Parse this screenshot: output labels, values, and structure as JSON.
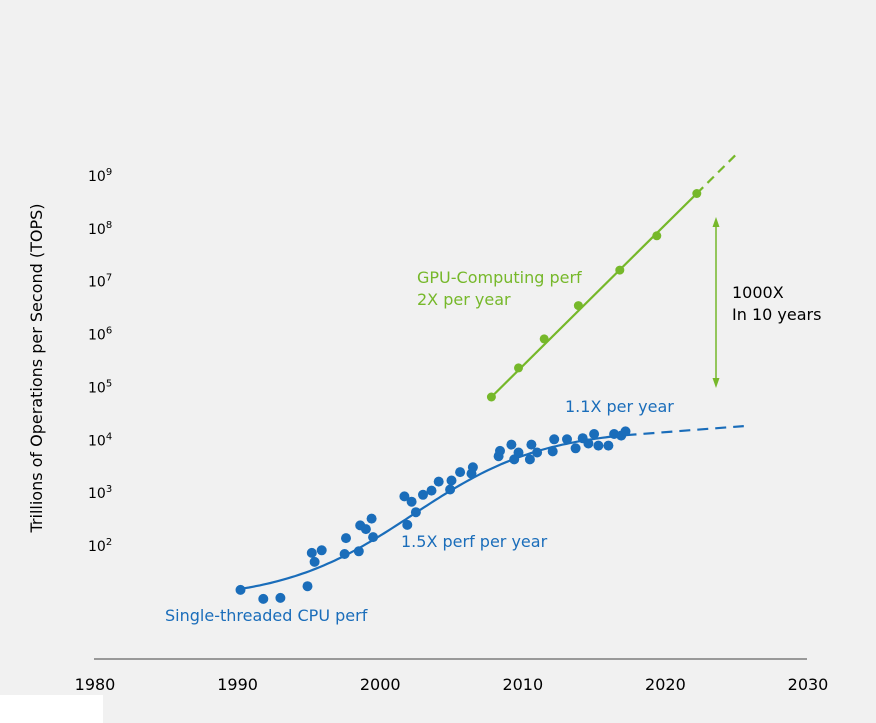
{
  "chart_data": {
    "type": "scatter",
    "title": "",
    "ylabel": "Trillions of Operations per Second (TOPS)",
    "xlabel": "",
    "yscale": "log",
    "xlim": [
      1980,
      2030
    ],
    "ylim_exponent": [
      1,
      9.35
    ],
    "x_ticks": [
      "1980",
      "1990",
      "2000",
      "2010",
      "2020",
      "2030"
    ],
    "y_ticks": [
      {
        "base": "10",
        "exp": "2",
        "value_exp": 2
      },
      {
        "base": "10",
        "exp": "3",
        "value_exp": 3
      },
      {
        "base": "10",
        "exp": "4",
        "value_exp": 4
      },
      {
        "base": "10",
        "exp": "5",
        "value_exp": 5
      },
      {
        "base": "10",
        "exp": "6",
        "value_exp": 6
      },
      {
        "base": "10",
        "exp": "7",
        "value_exp": 7
      },
      {
        "base": "10",
        "exp": "8",
        "value_exp": 8
      },
      {
        "base": "10",
        "exp": "9",
        "value_exp": 9
      }
    ],
    "grid": false,
    "colors": {
      "cpu": "#1a6dba",
      "gpu": "#76b82a",
      "axis": "#999999",
      "text": "#000000"
    },
    "series": [
      {
        "name": "Single-threaded CPU perf",
        "color": "#1a6dba",
        "points_log10": [
          [
            1990.2,
            1.15
          ],
          [
            1991.8,
            0.98
          ],
          [
            1993.0,
            1.0
          ],
          [
            1994.9,
            1.22
          ],
          [
            1995.2,
            1.85
          ],
          [
            1995.4,
            1.68
          ],
          [
            1995.9,
            1.9
          ],
          [
            1997.5,
            1.83
          ],
          [
            1997.6,
            2.13
          ],
          [
            1998.5,
            1.88
          ],
          [
            1998.6,
            2.37
          ],
          [
            1999.0,
            2.3
          ],
          [
            1999.4,
            2.5
          ],
          [
            1999.5,
            2.15
          ],
          [
            2001.7,
            2.92
          ],
          [
            2001.9,
            2.38
          ],
          [
            2002.2,
            2.82
          ],
          [
            2002.5,
            2.62
          ],
          [
            2003.0,
            2.95
          ],
          [
            2003.6,
            3.03
          ],
          [
            2004.1,
            3.2
          ],
          [
            2004.9,
            3.05
          ],
          [
            2005.0,
            3.22
          ],
          [
            2005.6,
            3.38
          ],
          [
            2006.4,
            3.35
          ],
          [
            2006.5,
            3.47
          ],
          [
            2008.3,
            3.68
          ],
          [
            2008.4,
            3.78
          ],
          [
            2009.2,
            3.9
          ],
          [
            2009.4,
            3.62
          ],
          [
            2009.7,
            3.75
          ],
          [
            2010.5,
            3.62
          ],
          [
            2010.6,
            3.9
          ],
          [
            2011.0,
            3.75
          ],
          [
            2012.1,
            3.77
          ],
          [
            2012.2,
            4.0
          ],
          [
            2013.1,
            4.0
          ],
          [
            2013.7,
            3.83
          ],
          [
            2014.2,
            4.02
          ],
          [
            2014.6,
            3.92
          ],
          [
            2015.0,
            4.1
          ],
          [
            2015.3,
            3.88
          ],
          [
            2016.0,
            3.88
          ],
          [
            2016.4,
            4.1
          ],
          [
            2016.9,
            4.07
          ],
          [
            2017.2,
            4.15
          ]
        ],
        "trend_label": "1.5X perf per year",
        "plateau_label": "1.1X per year"
      },
      {
        "name": "GPU-Computing perf",
        "color": "#76b82a",
        "points_log10": [
          [
            2007.8,
            4.8
          ],
          [
            2009.7,
            5.35
          ],
          [
            2011.5,
            5.9
          ],
          [
            2013.9,
            6.53
          ],
          [
            2016.8,
            7.2
          ],
          [
            2019.4,
            7.85
          ],
          [
            2022.2,
            8.65
          ]
        ],
        "rate_label": "2X per year"
      }
    ],
    "annotations": {
      "gap_line1": "1000X",
      "gap_line2": "In 10 years"
    }
  }
}
